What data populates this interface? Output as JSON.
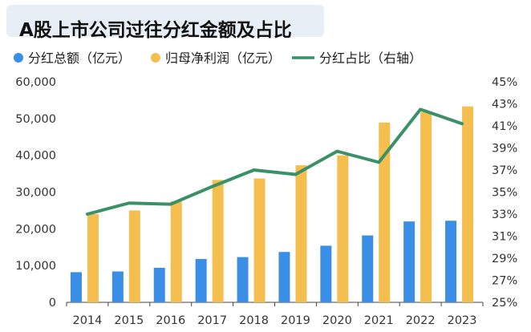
{
  "colors": {
    "dividend_bar": "#3a8ee6",
    "profit_bar": "#f5bf4f",
    "ratio_line": "#3a9168",
    "title_bg": "#e8eef6",
    "axis": "#444444"
  },
  "chart_data": {
    "type": "bar",
    "title": "A股上市公司过往分红金额及占比",
    "categories": [
      "2014",
      "2015",
      "2016",
      "2017",
      "2018",
      "2019",
      "2020",
      "2021",
      "2022",
      "2023"
    ],
    "series": [
      {
        "name": "分红总额（亿元）",
        "kind": "bar",
        "axis": "left",
        "values": [
          8200,
          8400,
          9400,
          11800,
          12300,
          13700,
          15400,
          18200,
          22000,
          22200
        ]
      },
      {
        "name": "归母净利润（亿元）",
        "kind": "bar",
        "axis": "left",
        "values": [
          24000,
          25000,
          27500,
          33300,
          33700,
          37300,
          40000,
          48900,
          51800,
          53300
        ]
      },
      {
        "name": "分红占比（右轴）",
        "kind": "line",
        "axis": "right",
        "values": [
          33.0,
          34.0,
          33.9,
          35.5,
          37.0,
          36.6,
          38.7,
          37.7,
          42.5,
          41.2
        ]
      }
    ],
    "y_left": {
      "min": 0,
      "max": 60000,
      "ticks": [
        0,
        10000,
        20000,
        30000,
        40000,
        50000,
        60000
      ],
      "tick_labels": [
        "0",
        "10,000",
        "20,000",
        "30,000",
        "40,000",
        "50,000",
        "60,000"
      ]
    },
    "y_right": {
      "min": 25,
      "max": 45,
      "ticks": [
        25,
        27,
        29,
        31,
        33,
        35,
        37,
        39,
        41,
        43,
        45
      ],
      "tick_labels": [
        "25%",
        "27%",
        "29%",
        "31%",
        "33%",
        "35%",
        "37%",
        "39%",
        "41%",
        "43%",
        "45%"
      ]
    },
    "legend_position": "top-left",
    "grid": false
  }
}
